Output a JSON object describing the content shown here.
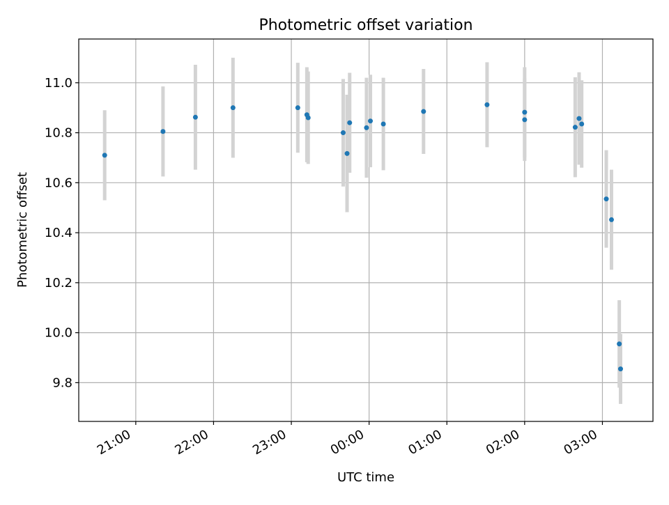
{
  "chart_data": {
    "type": "scatter",
    "title": "Photometric offset variation",
    "xlabel": "UTC time",
    "ylabel": "Photometric offset",
    "grid": true,
    "x_axis_type": "time",
    "xlim": [
      "20:16",
      "03:39"
    ],
    "ylim": [
      9.645,
      11.175
    ],
    "x_ticks": [
      "21:00",
      "22:00",
      "23:00",
      "00:00",
      "01:00",
      "02:00",
      "03:00"
    ],
    "y_ticks": [
      "9.8",
      "10.0",
      "10.2",
      "10.4",
      "10.6",
      "10.8",
      "11.0"
    ],
    "colors": {
      "points": "#1f77b4",
      "error_bars": "#d3d3d3",
      "grid": "#b0b0b0"
    },
    "series": [
      {
        "points": [
          {
            "x": "20:36",
            "y": 10.71,
            "err": 0.18
          },
          {
            "x": "21:21",
            "y": 10.805,
            "err": 0.18
          },
          {
            "x": "21:46",
            "y": 10.862,
            "err": 0.21
          },
          {
            "x": "22:15",
            "y": 10.9,
            "err": 0.2
          },
          {
            "x": "23:05",
            "y": 10.9,
            "err": 0.18
          },
          {
            "x": "23:12",
            "y": 10.872,
            "err": 0.19
          },
          {
            "x": "23:13",
            "y": 10.86,
            "err": 0.185
          },
          {
            "x": "23:40",
            "y": 10.8,
            "err": 0.215
          },
          {
            "x": "23:43",
            "y": 10.717,
            "err": 0.235
          },
          {
            "x": "23:45",
            "y": 10.84,
            "err": 0.2
          },
          {
            "x": "23:58",
            "y": 10.82,
            "err": 0.2
          },
          {
            "x": "00:01",
            "y": 10.847,
            "err": 0.185
          },
          {
            "x": "00:11",
            "y": 10.835,
            "err": 0.185
          },
          {
            "x": "00:42",
            "y": 10.885,
            "err": 0.17
          },
          {
            "x": "01:31",
            "y": 10.912,
            "err": 0.17
          },
          {
            "x": "02:00",
            "y": 10.852,
            "err": 0.165
          },
          {
            "x": "02:00",
            "y": 10.882,
            "err": 0.18
          },
          {
            "x": "02:39",
            "y": 10.822,
            "err": 0.2
          },
          {
            "x": "02:42",
            "y": 10.857,
            "err": 0.185
          },
          {
            "x": "02:44",
            "y": 10.835,
            "err": 0.175
          },
          {
            "x": "03:03",
            "y": 10.535,
            "err": 0.195
          },
          {
            "x": "03:07",
            "y": 10.452,
            "err": 0.2
          },
          {
            "x": "03:13",
            "y": 9.955,
            "err": 0.175
          },
          {
            "x": "03:14",
            "y": 9.855,
            "err": 0.14
          }
        ]
      }
    ]
  }
}
